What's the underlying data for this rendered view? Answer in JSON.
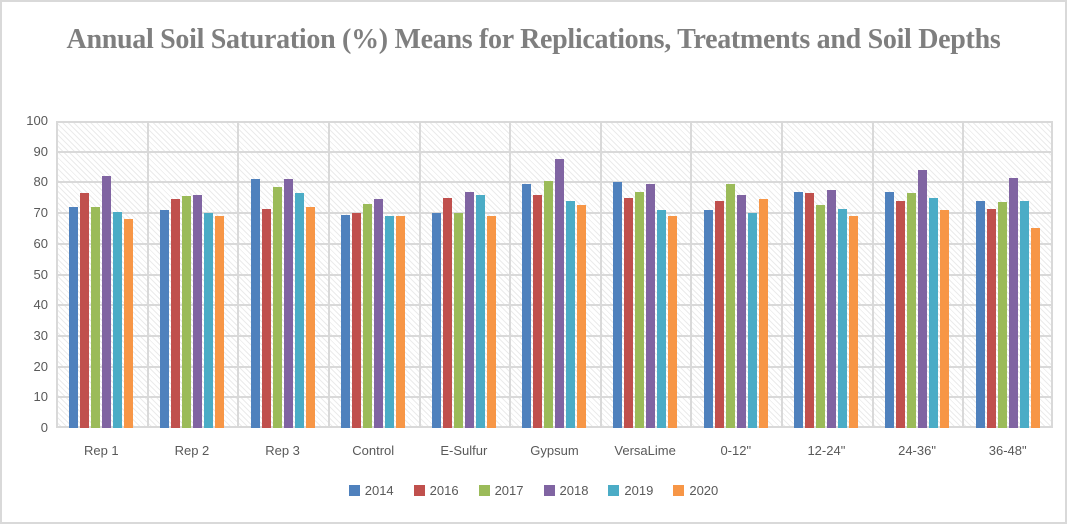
{
  "chart_data": {
    "type": "bar",
    "title": "Annual Soil Saturation (%) Means for Replications, Treatments and Soil Depths",
    "xlabel": "",
    "ylabel": "",
    "ylim": [
      0,
      100
    ],
    "ytick_step": 10,
    "grid": true,
    "legend_position": "bottom",
    "plot_background": "diagonal-hatch",
    "categories": [
      "Rep 1",
      "Rep 2",
      "Rep 3",
      "Control",
      "E-Sulfur",
      "Gypsum",
      "VersaLime",
      "0-12\"",
      "12-24\"",
      "24-36\"",
      "36-48\""
    ],
    "series": [
      {
        "name": "2014",
        "color": "#4F81BD",
        "values": [
          72,
          71,
          81,
          69.5,
          70,
          79.5,
          80,
          71,
          77,
          77,
          74
        ]
      },
      {
        "name": "2016",
        "color": "#C0504D",
        "values": [
          76.5,
          74.5,
          71.5,
          70,
          75,
          76,
          75,
          74,
          76.5,
          74,
          71.5
        ]
      },
      {
        "name": "2017",
        "color": "#9BBB59",
        "values": [
          72,
          75.5,
          78.5,
          73,
          70,
          80.5,
          77,
          79.5,
          72.5,
          76.5,
          73.5
        ]
      },
      {
        "name": "2018",
        "color": "#8064A2",
        "values": [
          82,
          76,
          81,
          74.5,
          77,
          87.5,
          79.5,
          76,
          77.5,
          84,
          81.5
        ]
      },
      {
        "name": "2019",
        "color": "#4BACC6",
        "values": [
          70.5,
          70,
          76.5,
          69,
          76,
          74,
          71,
          70,
          71.5,
          75,
          74
        ]
      },
      {
        "name": "2020",
        "color": "#F79646",
        "values": [
          68,
          69,
          72,
          69,
          69,
          72.5,
          69,
          74.5,
          69,
          71,
          65
        ]
      }
    ]
  },
  "colors": {
    "title_text": "#7f7f7f",
    "axis_text": "#595959",
    "gridline": "#d9d9d9",
    "frame_border": "#d9d9d9",
    "background": "#ffffff"
  }
}
